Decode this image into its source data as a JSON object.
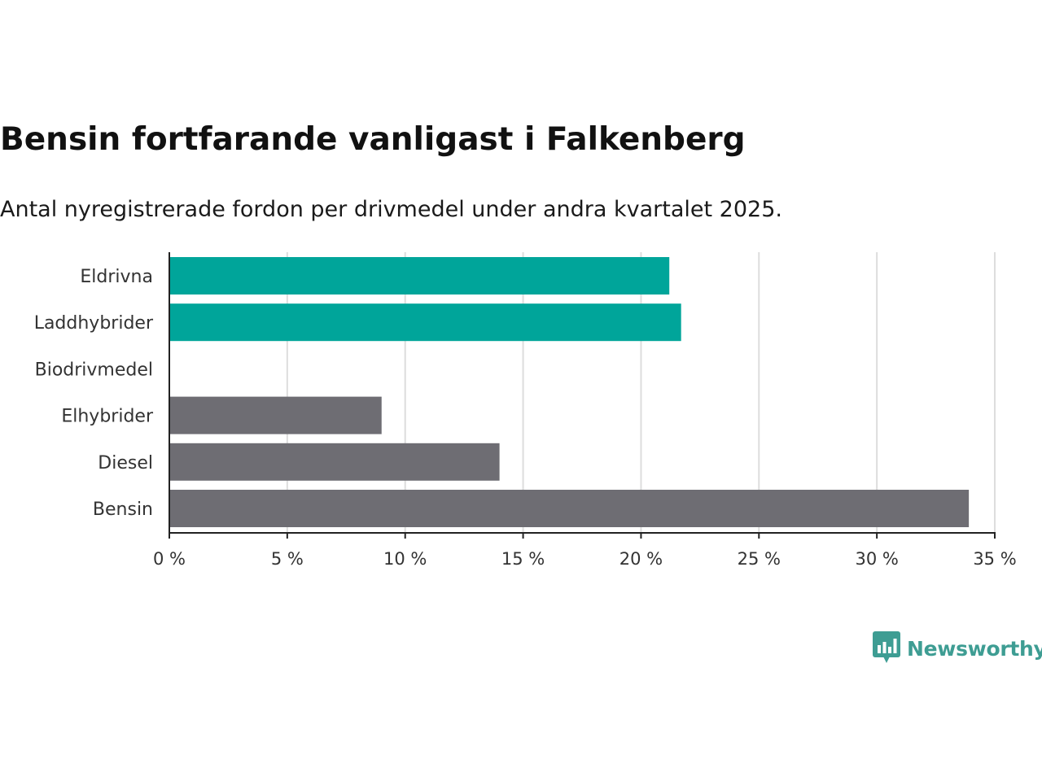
{
  "title": "Bensin fortfarande vanligast i Falkenberg",
  "subtitle": "Antal nyregistrerade fordon per drivmedel under andra kvartalet 2025.",
  "brand": {
    "name": "Newsworthy",
    "icon": "newsworthy-logo-icon",
    "color": "#3e9d93"
  },
  "colors": {
    "highlight": "#00a59a",
    "default": "#6e6d73",
    "grid": "#dddddd",
    "axis": "#222222"
  },
  "chart_data": {
    "type": "bar",
    "orientation": "horizontal",
    "title": "Bensin fortfarande vanligast i Falkenberg",
    "subtitle": "Antal nyregistrerade fordon per drivmedel under andra kvartalet 2025.",
    "categories": [
      "Eldrivna",
      "Laddhybrider",
      "Biodrivmedel",
      "Elhybrider",
      "Diesel",
      "Bensin"
    ],
    "values": [
      21.2,
      21.7,
      0,
      9.0,
      14.0,
      33.9
    ],
    "bar_colors": [
      "#00a59a",
      "#00a59a",
      "#6e6d73",
      "#6e6d73",
      "#6e6d73",
      "#6e6d73"
    ],
    "xlim": [
      0,
      35
    ],
    "xticks": [
      0,
      5,
      10,
      15,
      20,
      25,
      30,
      35
    ],
    "xtick_labels": [
      "0 %",
      "5 %",
      "10 %",
      "15 %",
      "20 %",
      "25 %",
      "30 %",
      "35 %"
    ],
    "xlabel": "",
    "ylabel": "",
    "grid": true,
    "legend": false
  }
}
